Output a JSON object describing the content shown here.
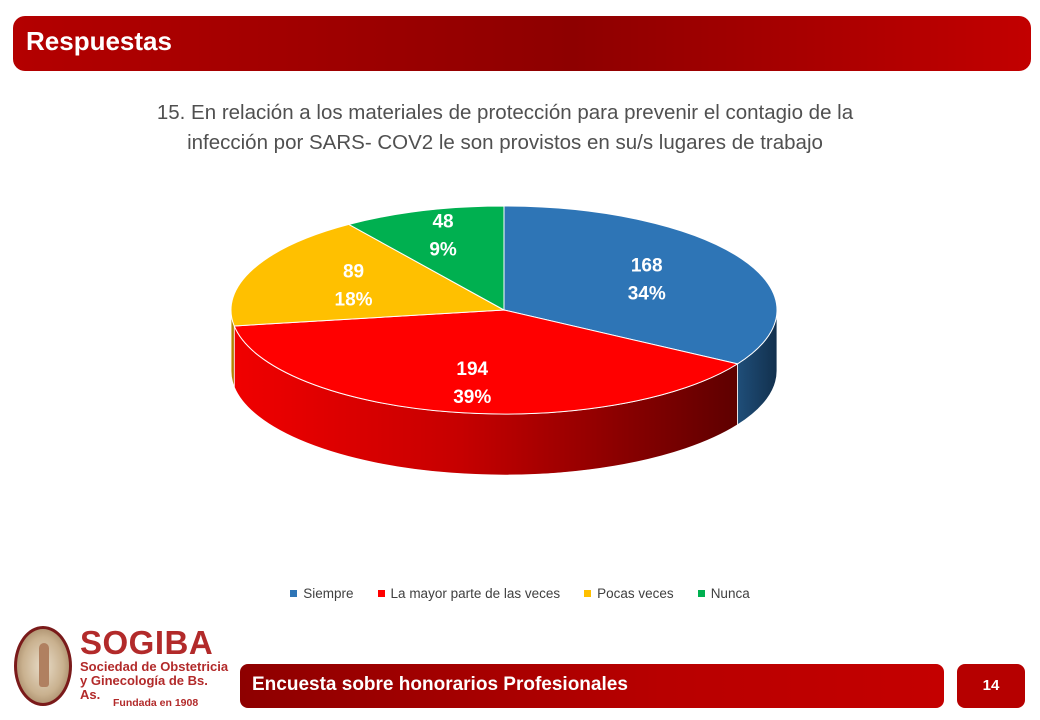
{
  "header": {
    "title": "Respuestas"
  },
  "question": {
    "line1": "15. En relación a los materiales de protección para prevenir el contagio de la",
    "line2": "infección por SARS- COV2 le son provistos en su/s lugares de trabajo"
  },
  "chart_data": {
    "type": "pie",
    "style": "3d",
    "legend_position": "bottom",
    "categories": [
      "Siempre",
      "La mayor parte de las veces",
      "Pocas veces",
      "Nunca"
    ],
    "values": [
      168,
      194,
      89,
      48
    ],
    "percent_labels": [
      "34%",
      "39%",
      "18%",
      "9%"
    ],
    "colors": [
      "#2e75b6",
      "#ff0000",
      "#ffc000",
      "#00b050"
    ]
  },
  "footer": {
    "logo_name": "SOGIBA",
    "logo_subtitle_line1": "Sociedad de Obstetricia",
    "logo_subtitle_line2": "y Ginecología de Bs. As.",
    "logo_founded": "Fundada en 1908",
    "survey_title": "Encuesta sobre honorarios Profesionales",
    "page_number": "14"
  }
}
